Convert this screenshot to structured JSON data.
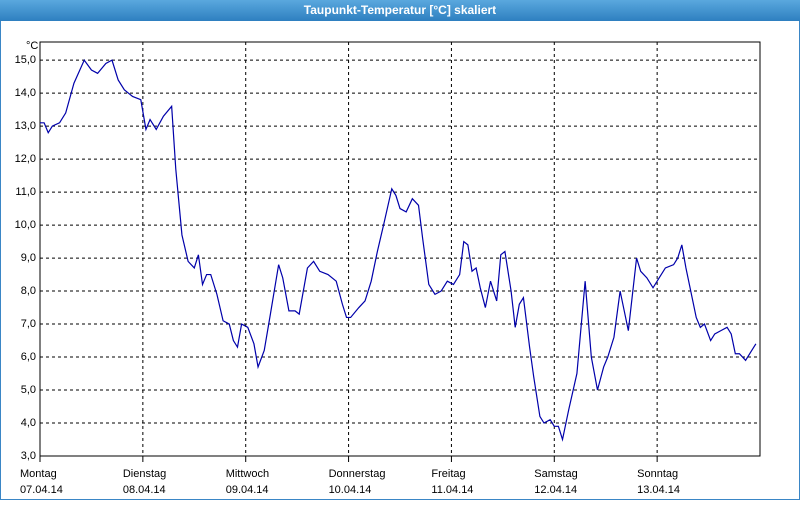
{
  "chart_data": {
    "type": "line",
    "title": "Taupunkt-Temperatur [°C] skaliert",
    "y_unit": "°C",
    "xlim": [
      0,
      7
    ],
    "ylim": [
      3,
      15.55
    ],
    "xticks": [
      {
        "value": 0,
        "label": "Montag"
      },
      {
        "value": 1,
        "label": "Dienstag"
      },
      {
        "value": 2,
        "label": "Mittwoch"
      },
      {
        "value": 3,
        "label": "Donnerstag"
      },
      {
        "value": 4,
        "label": "Freitag"
      },
      {
        "value": 5,
        "label": "Samstag"
      },
      {
        "value": 6,
        "label": "Sonntag"
      }
    ],
    "xtick_dates": [
      "07.04.14",
      "08.04.14",
      "09.04.14",
      "10.04.14",
      "11.04.14",
      "12.04.14",
      "13.04.14"
    ],
    "yticks": [
      {
        "value": 3,
        "label": "3,0"
      },
      {
        "value": 4,
        "label": "4,0"
      },
      {
        "value": 5,
        "label": "5,0"
      },
      {
        "value": 6,
        "label": "6,0"
      },
      {
        "value": 7,
        "label": "7,0"
      },
      {
        "value": 8,
        "label": "8,0"
      },
      {
        "value": 9,
        "label": "9,0"
      },
      {
        "value": 10,
        "label": "10,0"
      },
      {
        "value": 11,
        "label": "11,0"
      },
      {
        "value": 12,
        "label": "12,0"
      },
      {
        "value": 13,
        "label": "13,0"
      },
      {
        "value": 14,
        "label": "14,0"
      },
      {
        "value": 15,
        "label": "15,0"
      }
    ],
    "grid": true,
    "series": [
      {
        "color": "#0000aa",
        "x": [
          0,
          0.04,
          0.08,
          0.12,
          0.19,
          0.25,
          0.33,
          0.43,
          0.5,
          0.56,
          0.64,
          0.7,
          0.76,
          0.82,
          0.9,
          0.98,
          1.03,
          1.07,
          1.13,
          1.2,
          1.28,
          1.32,
          1.38,
          1.44,
          1.5,
          1.54,
          1.58,
          1.62,
          1.66,
          1.72,
          1.78,
          1.84,
          1.88,
          1.92,
          1.96,
          2.02,
          2.08,
          2.12,
          2.18,
          2.24,
          2.32,
          2.36,
          2.42,
          2.48,
          2.52,
          2.6,
          2.66,
          2.72,
          2.8,
          2.88,
          2.94,
          2.98,
          3.02,
          3.1,
          3.16,
          3.22,
          3.28,
          3.34,
          3.42,
          3.46,
          3.5,
          3.56,
          3.62,
          3.68,
          3.72,
          3.78,
          3.84,
          3.9,
          3.96,
          4.02,
          4.08,
          4.12,
          4.16,
          4.2,
          4.24,
          4.28,
          4.33,
          4.38,
          4.44,
          4.48,
          4.52,
          4.58,
          4.62,
          4.66,
          4.7,
          4.76,
          4.8,
          4.86,
          4.9,
          4.96,
          5,
          5.04,
          5.08,
          5.14,
          5.22,
          5.3,
          5.36,
          5.42,
          5.48,
          5.52,
          5.58,
          5.64,
          5.72,
          5.8,
          5.84,
          5.9,
          5.96,
          6.02,
          6.08,
          6.16,
          6.2,
          6.24,
          6.28,
          6.32,
          6.38,
          6.42,
          6.46,
          6.52,
          6.56,
          6.62,
          6.68,
          6.72,
          6.76,
          6.8,
          6.86,
          6.9,
          6.96
        ],
        "values": [
          13.1,
          13.1,
          12.8,
          13,
          13.1,
          13.4,
          14.3,
          15,
          14.7,
          14.6,
          14.9,
          15,
          14.4,
          14.1,
          13.9,
          13.8,
          12.9,
          13.2,
          12.9,
          13.3,
          13.6,
          11.7,
          9.7,
          8.9,
          8.7,
          9.1,
          8.2,
          8.5,
          8.5,
          7.9,
          7.1,
          7,
          6.5,
          6.3,
          7,
          6.9,
          6.4,
          5.7,
          6.2,
          7.3,
          8.8,
          8.4,
          7.4,
          7.4,
          7.3,
          8.7,
          8.9,
          8.6,
          8.5,
          8.3,
          7.6,
          7.2,
          7.2,
          7.5,
          7.7,
          8.3,
          9.2,
          10,
          11.1,
          10.9,
          10.5,
          10.4,
          10.8,
          10.6,
          9.6,
          8.2,
          7.9,
          8,
          8.3,
          8.2,
          8.5,
          9.5,
          9.4,
          8.6,
          8.7,
          8.1,
          7.5,
          8.3,
          7.7,
          9.1,
          9.2,
          8,
          6.9,
          7.6,
          7.8,
          6.3,
          5.4,
          4.2,
          4,
          4.1,
          3.9,
          3.9,
          3.5,
          4.4,
          5.5,
          8.3,
          6,
          5,
          5.7,
          6,
          6.6,
          8,
          6.8,
          9,
          8.6,
          8.4,
          8.1,
          8.4,
          8.7,
          8.8,
          9,
          9.4,
          8.7,
          8.1,
          7.2,
          6.9,
          7,
          6.5,
          6.7,
          6.8,
          6.9,
          6.7,
          6.1,
          6.1,
          5.9,
          6.1,
          6.4
        ]
      }
    ]
  }
}
